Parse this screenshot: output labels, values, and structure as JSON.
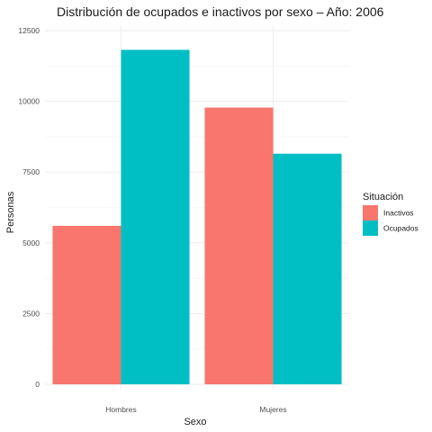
{
  "chart_data": {
    "type": "bar",
    "title": "Distribución de ocupados e inactivos por sexo – Año: 2006",
    "xlabel": "Sexo",
    "ylabel": "Personas",
    "categories": [
      "Hombres",
      "Mujeres"
    ],
    "series": [
      {
        "name": "Inactivos",
        "color": "#F8766D",
        "values": [
          5600,
          9780
        ]
      },
      {
        "name": "Ocupados",
        "color": "#00BFC4",
        "values": [
          11820,
          8150
        ]
      }
    ],
    "ylim": [
      0,
      12500
    ],
    "yticks": [
      0,
      2500,
      5000,
      7500,
      10000,
      12500
    ],
    "ytick_labels": [
      "0",
      "2500",
      "5000",
      "7500",
      "10000",
      "12500"
    ],
    "grid": true,
    "legend": {
      "title": "Situación",
      "position": "right"
    }
  }
}
